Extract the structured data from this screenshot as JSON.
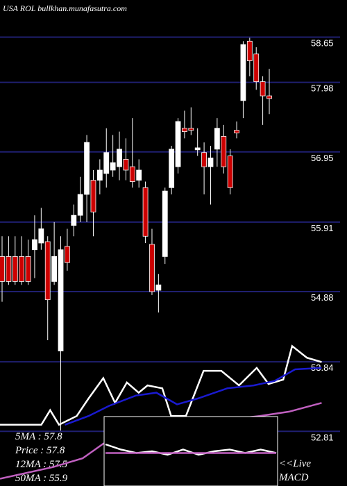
{
  "chart_data": [
    {
      "type": "candlestick",
      "title": "USA ROL bullkhan.munafasutra.com",
      "up_color": "#ffffff",
      "down_color": "#cc0000",
      "grid_color": "#1f1f70",
      "ylim": [
        52.0,
        59.2
      ],
      "yticks": [
        58.65,
        57.98,
        56.95,
        55.91,
        54.88,
        53.84,
        52.81
      ],
      "open": [
        55.4,
        55.4,
        55.4,
        55.4,
        55.4,
        55.5,
        55.6,
        55.62,
        55.03,
        54.0,
        55.55,
        55.86,
        56.01,
        56.32,
        56.53,
        56.53,
        56.63,
        56.68,
        56.73,
        56.84,
        56.73,
        56.53,
        56.42,
        55.58,
        54.9,
        55.4,
        56.42,
        56.73,
        57.3,
        57.3,
        56.98,
        56.94,
        56.73,
        56.99,
        57.18,
        56.89,
        57.27,
        57.71,
        58.59,
        58.4,
        57.99,
        57.78
      ],
      "high": [
        55.7,
        55.7,
        55.7,
        55.7,
        55.65,
        56.01,
        56.12,
        55.7,
        55.91,
        55.7,
        55.81,
        56.17,
        56.58,
        57.2,
        56.68,
        56.84,
        57.3,
        57.2,
        57.25,
        57.15,
        57.45,
        56.84,
        56.51,
        55.81,
        55.14,
        56.42,
        57.04,
        57.45,
        57.56,
        57.61,
        57.3,
        57.09,
        57.04,
        57.45,
        57.35,
        56.99,
        57.4,
        58.59,
        58.64,
        58.5,
        58.07,
        58.18
      ],
      "low": [
        54.73,
        54.98,
        54.98,
        54.98,
        54.98,
        55.08,
        55.5,
        54.16,
        54.98,
        52.82,
        55.19,
        55.7,
        55.91,
        55.91,
        55.7,
        56.32,
        56.42,
        56.58,
        56.53,
        56.53,
        56.42,
        56.42,
        55.6,
        54.83,
        54.57,
        55.29,
        56.32,
        56.63,
        57.15,
        57.2,
        56.89,
        56.32,
        56.17,
        56.73,
        56.63,
        56.32,
        57.15,
        57.45,
        58.07,
        57.87,
        57.35,
        57.51
      ],
      "close": [
        55.03,
        55.03,
        55.03,
        55.03,
        55.03,
        55.65,
        55.81,
        54.76,
        55.4,
        55.5,
        55.31,
        56.01,
        56.32,
        57.09,
        56.06,
        56.68,
        56.94,
        56.79,
        56.99,
        56.68,
        56.51,
        56.68,
        55.7,
        54.88,
        54.98,
        56.37,
        56.99,
        57.4,
        57.25,
        57.27,
        57.01,
        56.73,
        56.86,
        57.3,
        56.73,
        56.42,
        57.23,
        58.54,
        58.3,
        57.99,
        57.78,
        57.74
      ],
      "annotations": [
        "5MA : 57.8",
        "Price : 57.8",
        "12MA : 57.5",
        "50MA : 55.9"
      ]
    },
    {
      "type": "line",
      "xlim": [
        0,
        58.8
      ],
      "ylim": [
        0,
        100
      ],
      "series": [
        {
          "color": "#ffffff",
          "x": [
            0,
            7,
            8.5,
            10,
            13,
            15,
            17.5,
            19.5,
            21.5,
            23.5,
            25,
            27.5,
            29,
            31.5,
            34.5,
            37.5,
            40.5,
            43.5,
            45.5,
            48,
            49.5,
            52,
            54.5
          ],
          "values": [
            42,
            42,
            52,
            42,
            48,
            60,
            74,
            57,
            71,
            64,
            69,
            67,
            48,
            48,
            79,
            79,
            69,
            81,
            70,
            73,
            96,
            88,
            85
          ]
        },
        {
          "color": "#1a1ad0",
          "x": [
            11,
            15,
            18.5,
            23,
            26.5,
            30,
            33.5,
            38.5,
            43,
            46.5,
            50,
            54.5
          ],
          "values": [
            42,
            48,
            55,
            62,
            64,
            56,
            60,
            67,
            69,
            72,
            80,
            81
          ]
        },
        {
          "color": "#c060c0",
          "x": [
            0,
            9,
            14,
            17.5,
            23,
            30,
            37,
            44,
            49,
            54.5
          ],
          "values": [
            5,
            13,
            19,
            29,
            39,
            44,
            45,
            48,
            51,
            57
          ]
        }
      ]
    },
    {
      "type": "line",
      "xlim": [
        0,
        11
      ],
      "ylim": [
        -1,
        1
      ],
      "annotations": [
        "<<Live",
        "MACD"
      ],
      "series": [
        {
          "color": "#ffffff",
          "x": [
            0,
            1,
            2,
            3,
            4,
            5,
            6,
            7,
            8,
            9,
            10,
            11
          ],
          "values": [
            0.2,
            0.05,
            -0.05,
            0,
            -0.1,
            0.05,
            -0.1,
            0,
            0.05,
            -0.05,
            0.05,
            -0.05
          ]
        },
        {
          "color": "#c060c0",
          "x": [
            0,
            11
          ],
          "values": [
            -0.05,
            -0.05
          ]
        }
      ]
    }
  ]
}
